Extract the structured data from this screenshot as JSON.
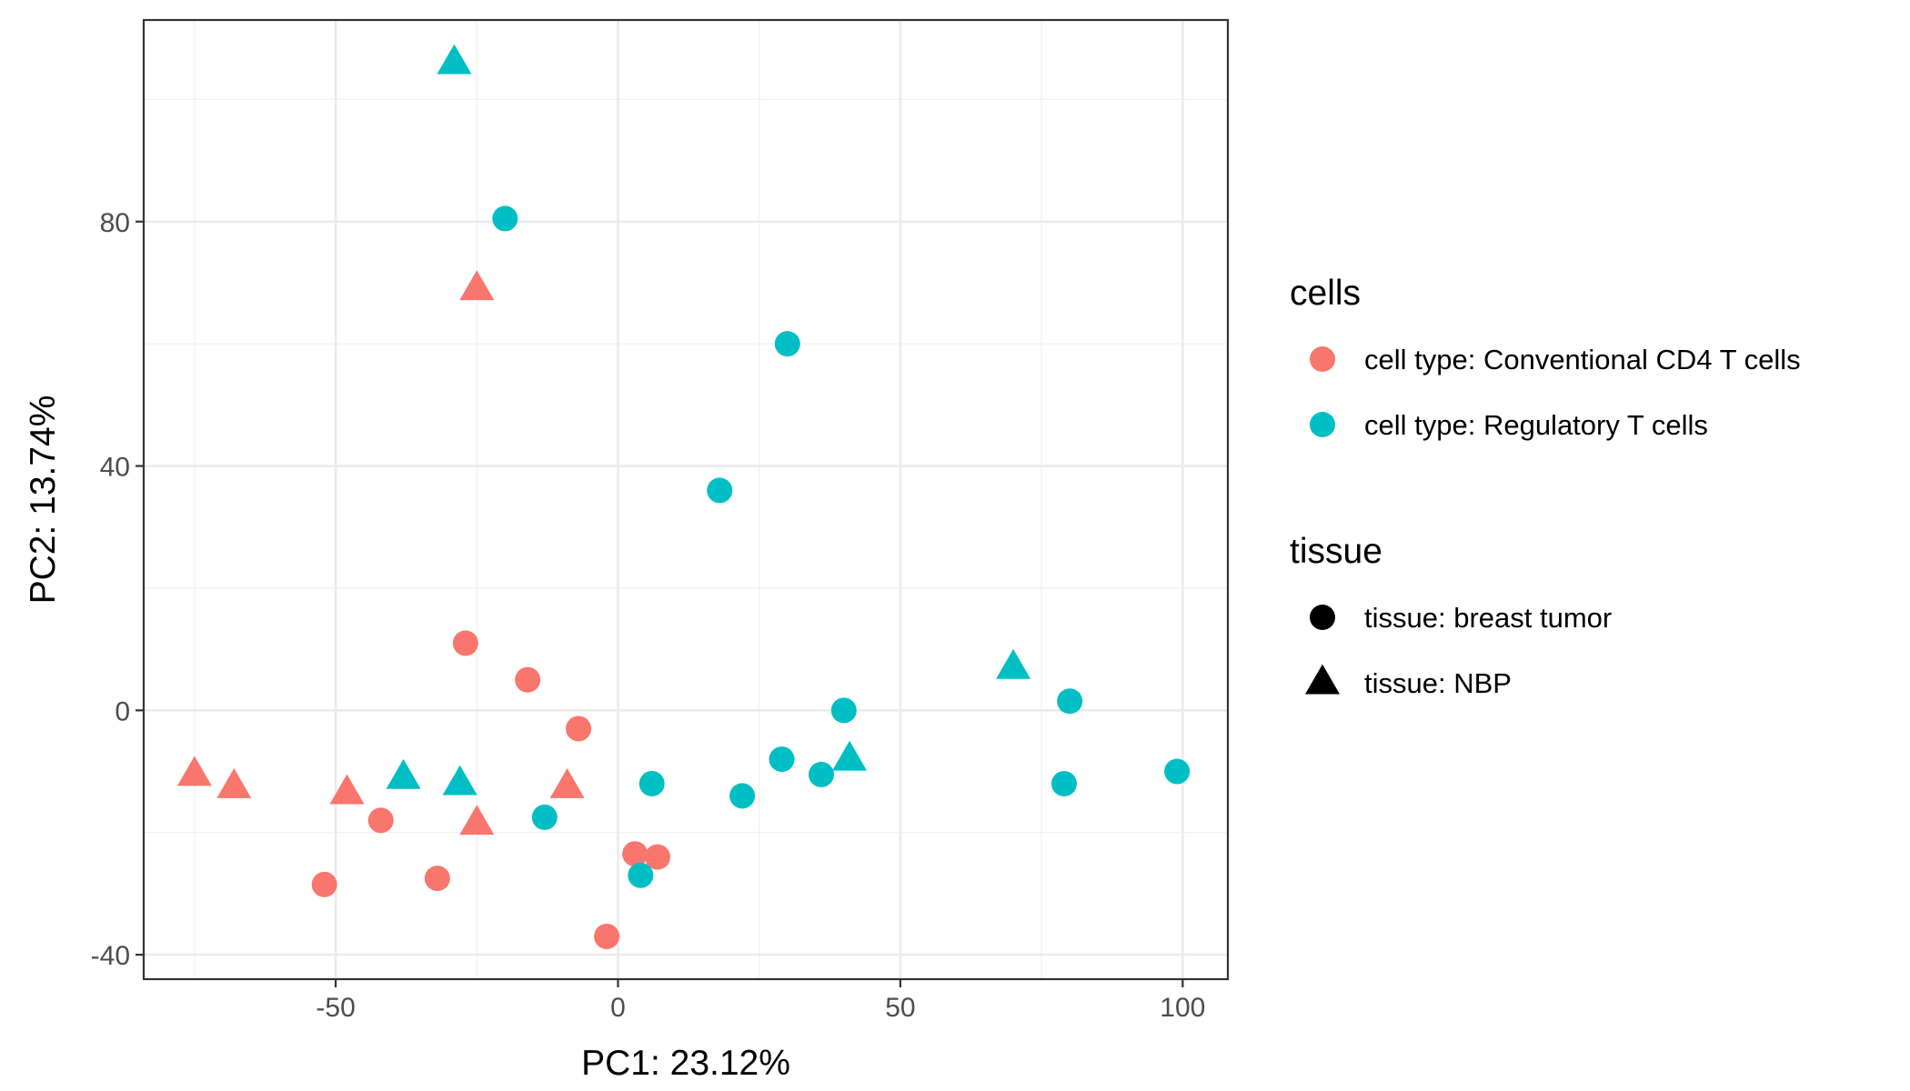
{
  "chart_data": {
    "type": "scatter",
    "title": "",
    "xlabel": "PC1: 23.12%",
    "ylabel": "PC2: 13.74%",
    "xlim": [
      -84,
      108
    ],
    "ylim": [
      -44,
      113
    ],
    "x_ticks": [
      -50,
      0,
      50,
      100
    ],
    "x_tick_labels": [
      "-50",
      "0",
      "50",
      "100"
    ],
    "y_ticks": [
      -40,
      0,
      40,
      80
    ],
    "y_tick_labels": [
      "-40",
      "0",
      "40",
      "80"
    ],
    "grid": true,
    "legend_position": "right",
    "legends": [
      {
        "title": "cells",
        "key": "cells",
        "entries": [
          {
            "value": "conv",
            "label": "cell type: Conventional CD4 T cells",
            "color": "#F8766D"
          },
          {
            "value": "treg",
            "label": "cell type: Regulatory T cells",
            "color": "#00BFC4"
          }
        ]
      },
      {
        "title": "tissue",
        "key": "tissue",
        "entries": [
          {
            "value": "tumor",
            "label": "tissue: breast tumor",
            "shape": "circle"
          },
          {
            "value": "nbp",
            "label": "tissue: NBP",
            "shape": "triangle"
          }
        ]
      }
    ],
    "points": [
      {
        "x": -29,
        "y": 106,
        "cells": "treg",
        "tissue": "nbp"
      },
      {
        "x": -20,
        "y": 80.5,
        "cells": "treg",
        "tissue": "tumor"
      },
      {
        "x": -25,
        "y": 69,
        "cells": "conv",
        "tissue": "nbp"
      },
      {
        "x": 30,
        "y": 60,
        "cells": "treg",
        "tissue": "tumor"
      },
      {
        "x": 18,
        "y": 36,
        "cells": "treg",
        "tissue": "tumor"
      },
      {
        "x": -27,
        "y": 11,
        "cells": "conv",
        "tissue": "tumor"
      },
      {
        "x": -16,
        "y": 5,
        "cells": "conv",
        "tissue": "tumor"
      },
      {
        "x": -7,
        "y": -3,
        "cells": "conv",
        "tissue": "tumor"
      },
      {
        "x": 40,
        "y": 0,
        "cells": "treg",
        "tissue": "tumor"
      },
      {
        "x": 70,
        "y": 7,
        "cells": "treg",
        "tissue": "nbp"
      },
      {
        "x": 80,
        "y": 1.5,
        "cells": "treg",
        "tissue": "tumor"
      },
      {
        "x": -75,
        "y": -10.5,
        "cells": "conv",
        "tissue": "nbp"
      },
      {
        "x": -68,
        "y": -12.5,
        "cells": "conv",
        "tissue": "nbp"
      },
      {
        "x": -48,
        "y": -13.5,
        "cells": "conv",
        "tissue": "nbp"
      },
      {
        "x": -38,
        "y": -11,
        "cells": "treg",
        "tissue": "nbp"
      },
      {
        "x": -28,
        "y": -12,
        "cells": "treg",
        "tissue": "nbp"
      },
      {
        "x": -9,
        "y": -12.5,
        "cells": "conv",
        "tissue": "nbp"
      },
      {
        "x": -42,
        "y": -18,
        "cells": "conv",
        "tissue": "tumor"
      },
      {
        "x": -25,
        "y": -18.5,
        "cells": "conv",
        "tissue": "nbp"
      },
      {
        "x": -13,
        "y": -17.5,
        "cells": "treg",
        "tissue": "tumor"
      },
      {
        "x": 6,
        "y": -12,
        "cells": "treg",
        "tissue": "tumor"
      },
      {
        "x": 22,
        "y": -14,
        "cells": "treg",
        "tissue": "tumor"
      },
      {
        "x": 29,
        "y": -8,
        "cells": "treg",
        "tissue": "tumor"
      },
      {
        "x": 36,
        "y": -10.5,
        "cells": "treg",
        "tissue": "tumor"
      },
      {
        "x": 41,
        "y": -8,
        "cells": "treg",
        "tissue": "nbp"
      },
      {
        "x": 79,
        "y": -12,
        "cells": "treg",
        "tissue": "tumor"
      },
      {
        "x": 99,
        "y": -10,
        "cells": "treg",
        "tissue": "tumor"
      },
      {
        "x": -52,
        "y": -28.5,
        "cells": "conv",
        "tissue": "tumor"
      },
      {
        "x": -32,
        "y": -27.5,
        "cells": "conv",
        "tissue": "tumor"
      },
      {
        "x": 3,
        "y": -23.5,
        "cells": "conv",
        "tissue": "tumor"
      },
      {
        "x": 7,
        "y": -24,
        "cells": "conv",
        "tissue": "tumor"
      },
      {
        "x": 4,
        "y": -27,
        "cells": "treg",
        "tissue": "tumor"
      },
      {
        "x": -2,
        "y": -37,
        "cells": "conv",
        "tissue": "tumor"
      }
    ]
  }
}
